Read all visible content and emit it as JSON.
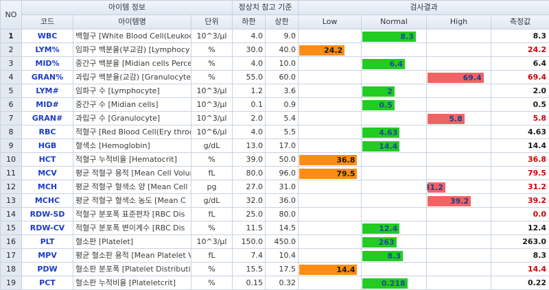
{
  "header": {
    "no": "NO",
    "item_info": "아이템 정보",
    "ref_range": "정상치 참고 기준",
    "result": "검사결과",
    "code": "코드",
    "item_name": "아이템명",
    "unit": "단위",
    "lower": "하한",
    "upper": "상한",
    "low": "Low",
    "normal": "Normal",
    "high": "High",
    "measured": "측정값"
  },
  "colors": {
    "normal_bar": "#22cc22",
    "high_bar": "#f26464",
    "low_bar": "#ff8c14",
    "measured_high": "#cc0000",
    "measured_normal": "#1a1a1a"
  },
  "rows": [
    {
      "no": "1",
      "code": "WBC",
      "name": "백혈구 [White Blood Cell(Leukocy",
      "unit": "10^3/µl",
      "lo": "4.0",
      "hi": "9.0",
      "status": "normal",
      "fill": 0.85,
      "val": "8.3",
      "meas": "8.3"
    },
    {
      "no": "2",
      "code": "LYM%",
      "name": "임파구 백분율(부교감) [Lymphocy",
      "unit": "%",
      "lo": "30.0",
      "hi": "40.0",
      "status": "low",
      "fill": 0.75,
      "val": "24.2",
      "meas": "24.2"
    },
    {
      "no": "3",
      "code": "MID%",
      "name": "중간구 백분율 [Midian cells Perce",
      "unit": "%",
      "lo": "4.0",
      "hi": "10.0",
      "status": "normal",
      "fill": 0.68,
      "val": "6.4",
      "meas": "6.4"
    },
    {
      "no": "4",
      "code": "GRAN%",
      "name": "과립구 백분율(교감) [Granulocyte",
      "unit": "%",
      "lo": "55.0",
      "hi": "60.0",
      "status": "high",
      "fill": 0.9,
      "val": "69.4",
      "meas": "69.4"
    },
    {
      "no": "5",
      "code": "LYM#",
      "name": "임파구 수 [Lymphocyte]",
      "unit": "10^3/µl",
      "lo": "1.2",
      "hi": "3.6",
      "status": "normal",
      "fill": 0.52,
      "val": "2",
      "meas": "2.0"
    },
    {
      "no": "6",
      "code": "MID#",
      "name": "중간구 수 [Midian cells]",
      "unit": "10^3/µl",
      "lo": "0.1",
      "hi": "0.9",
      "status": "normal",
      "fill": 0.52,
      "val": "0.5",
      "meas": "0.5"
    },
    {
      "no": "7",
      "code": "GRAN#",
      "name": "과립구 수 [Granulocyte]",
      "unit": "10^3/µl",
      "lo": "2.0",
      "hi": "5.4",
      "status": "high",
      "fill": 0.6,
      "val": "5.8",
      "meas": "5.8"
    },
    {
      "no": "8",
      "code": "RBC",
      "name": "적혈구 [Red Blood Cell(Ery throcy",
      "unit": "10^6/µl",
      "lo": "4.0",
      "hi": "5.5",
      "status": "normal",
      "fill": 0.6,
      "val": "4.63",
      "meas": "4.63"
    },
    {
      "no": "9",
      "code": "HGB",
      "name": "혈색소 [Hemoglobin]",
      "unit": "g/dL",
      "lo": "13.0",
      "hi": "17.0",
      "status": "normal",
      "fill": 0.6,
      "val": "14.4",
      "meas": "14.4"
    },
    {
      "no": "10",
      "code": "HCT",
      "name": "적혈구 누적비율 [Hematocrit]",
      "unit": "%",
      "lo": "39.0",
      "hi": "50.0",
      "status": "low",
      "fill": 0.95,
      "val": "36.8",
      "meas": "36.8"
    },
    {
      "no": "11",
      "code": "MCV",
      "name": "평균 적혈구 용적 [Mean Cell Volur",
      "unit": "fL",
      "lo": "80.0",
      "hi": "96.0",
      "status": "low",
      "fill": 0.95,
      "val": "79.5",
      "meas": "79.5"
    },
    {
      "no": "12",
      "code": "MCH",
      "name": "평균 적혈구 혈색소 양 [Mean Cell",
      "unit": "pg",
      "lo": "27.0",
      "hi": "31.0",
      "status": "high",
      "fill": 0.3,
      "val": "31.2",
      "meas": "31.2"
    },
    {
      "no": "13",
      "code": "MCHC",
      "name": "평균 적혈구 혈색소 농도 [Mean C",
      "unit": "g/dL",
      "lo": "32.0",
      "hi": "36.0",
      "status": "high",
      "fill": 0.7,
      "val": "39.2",
      "meas": "39.2"
    },
    {
      "no": "14",
      "code": "RDW-SD",
      "name": "적혈구 분포폭 표준편차 [RBC Dis",
      "unit": "fL",
      "lo": "25.0",
      "hi": "80.0",
      "status": "none",
      "fill": 0,
      "val": "",
      "meas": "0.0"
    },
    {
      "no": "15",
      "code": "RDW-CV",
      "name": "적혈구 분포폭 변이계수 [RBC Dis",
      "unit": "%",
      "lo": "11.5",
      "hi": "14.5",
      "status": "normal",
      "fill": 0.6,
      "val": "12.4",
      "meas": "12.4"
    },
    {
      "no": "16",
      "code": "PLT",
      "name": "혈소판 [Platelet]",
      "unit": "10^3/µl",
      "lo": "150.0",
      "hi": "450.0",
      "status": "normal",
      "fill": 0.55,
      "val": "263",
      "meas": "263.0"
    },
    {
      "no": "17",
      "code": "MPV",
      "name": "평균 혈소판 용적 [Mean Platelet V",
      "unit": "fL",
      "lo": "7.4",
      "hi": "10.4",
      "status": "normal",
      "fill": 0.65,
      "val": "8.3",
      "meas": "8.3"
    },
    {
      "no": "18",
      "code": "PDW",
      "name": "혈소판 분포폭 [Platelet Distributio",
      "unit": "%",
      "lo": "15.5",
      "hi": "17.5",
      "status": "low",
      "fill": 0.95,
      "val": "14.4",
      "meas": "14.4"
    },
    {
      "no": "19",
      "code": "PCT",
      "name": "혈소판 누적비율 [Plateletcrit]",
      "unit": "%",
      "lo": "0.15",
      "hi": "0.32",
      "status": "normal",
      "fill": 0.72,
      "val": "0.218",
      "meas": "0.22"
    }
  ]
}
